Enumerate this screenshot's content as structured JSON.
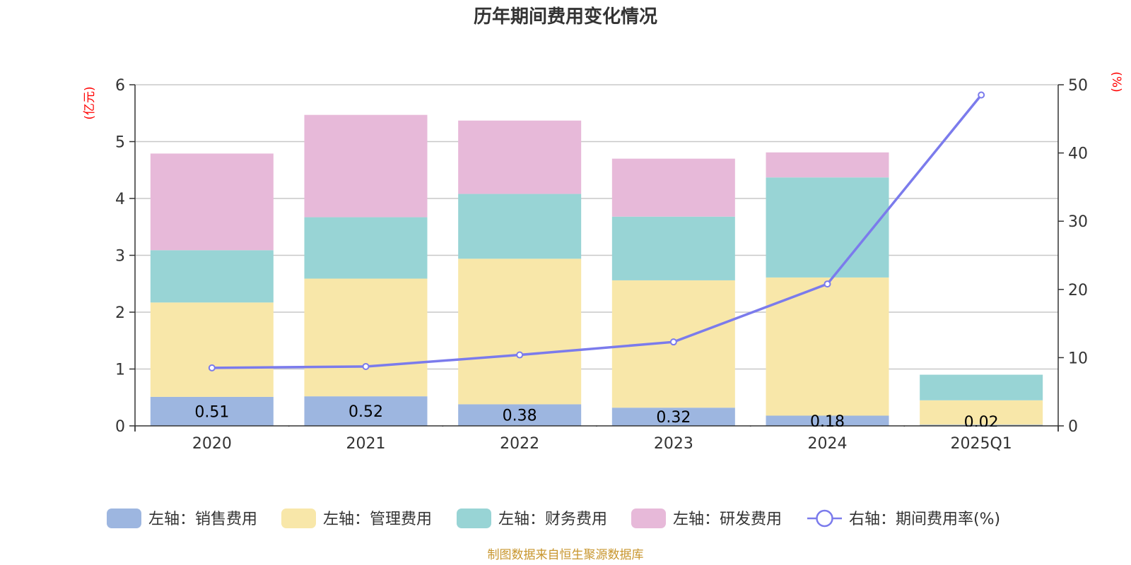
{
  "chart_data": {
    "type": "bar",
    "title": "历年期间费用变化情况",
    "categories": [
      "2020",
      "2021",
      "2022",
      "2023",
      "2024",
      "2025Q1"
    ],
    "y_left": {
      "unit": "(亿元)",
      "ylim": [
        0,
        6
      ],
      "ticks": [
        "0",
        "1",
        "2",
        "3",
        "4",
        "5",
        "6"
      ]
    },
    "y_right": {
      "unit": "(%)",
      "ylim": [
        0,
        50
      ],
      "ticks": [
        "0",
        "10",
        "20",
        "30",
        "40",
        "50"
      ]
    },
    "series": [
      {
        "name": "左轴：销售费用",
        "kind": "bar",
        "axis": "left",
        "color": "#9db6e0",
        "values": [
          0.51,
          0.52,
          0.38,
          0.32,
          0.18,
          0.02
        ],
        "labels": [
          "0.51",
          "0.52",
          "0.38",
          "0.32",
          "0.18",
          "0.02"
        ]
      },
      {
        "name": "左轴：管理费用",
        "kind": "bar",
        "axis": "left",
        "color": "#f8e7a9",
        "values": [
          1.66,
          2.07,
          2.56,
          2.24,
          2.43,
          0.43
        ]
      },
      {
        "name": "左轴：财务费用",
        "kind": "bar",
        "axis": "left",
        "color": "#98d4d5",
        "values": [
          0.92,
          1.08,
          1.14,
          1.12,
          1.76,
          0.45
        ]
      },
      {
        "name": "左轴：研发费用",
        "kind": "bar",
        "axis": "left",
        "color": "#e7b9d9",
        "values": [
          1.7,
          1.8,
          1.29,
          1.02,
          0.44,
          0.0
        ]
      },
      {
        "name": "右轴：期间费用率(%)",
        "kind": "line",
        "axis": "right",
        "color": "#7b7bec",
        "values": [
          8.5,
          8.7,
          10.4,
          12.3,
          20.8,
          48.5
        ]
      }
    ],
    "grid": true,
    "legend": "bottom"
  },
  "footer": {
    "source": "制图数据来自恒生聚源数据库"
  }
}
